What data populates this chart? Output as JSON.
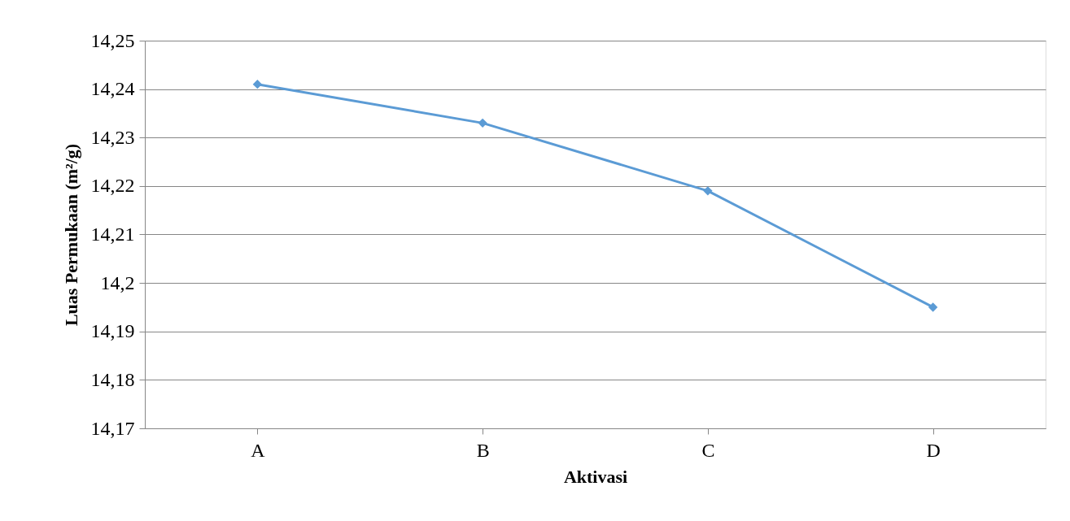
{
  "chart_data": {
    "type": "line",
    "xlabel": "Aktivasi",
    "ylabel": "Luas Permukaan (m²/g)",
    "categories": [
      "A",
      "B",
      "C",
      "D"
    ],
    "series": [
      {
        "color": "#5b9bd5",
        "values": [
          14.241,
          14.233,
          14.219,
          14.195
        ]
      }
    ],
    "ylim": [
      14.17,
      14.25
    ],
    "yticks": [
      {
        "value": 14.17,
        "label": "14,17"
      },
      {
        "value": 14.18,
        "label": "14,18"
      },
      {
        "value": 14.19,
        "label": "14,19"
      },
      {
        "value": 14.2,
        "label": "14,2"
      },
      {
        "value": 14.21,
        "label": "14,21"
      },
      {
        "value": 14.22,
        "label": "14,22"
      },
      {
        "value": 14.23,
        "label": "14,23"
      },
      {
        "value": 14.24,
        "label": "14,24"
      },
      {
        "value": 14.25,
        "label": "14,25"
      }
    ],
    "grid": "y",
    "marker": "diamond",
    "line_style": "solid"
  }
}
